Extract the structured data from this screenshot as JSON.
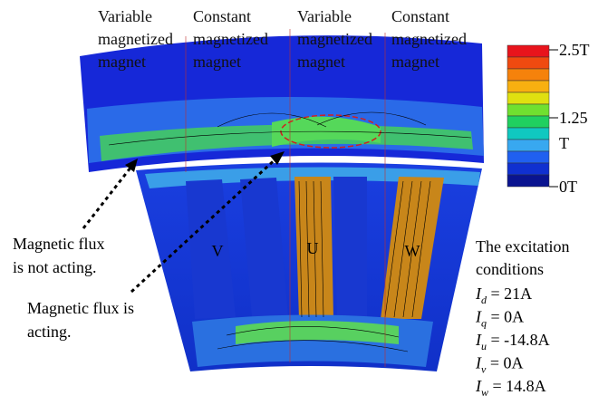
{
  "magnet_labels": [
    {
      "lines": [
        "Variable",
        "magnetized",
        "magnet"
      ]
    },
    {
      "lines": [
        "Constant",
        "magnetized",
        "magnet"
      ]
    },
    {
      "lines": [
        "Variable",
        "magnetized",
        "magnet"
      ]
    },
    {
      "lines": [
        "Constant",
        "magnetized",
        "magnet"
      ]
    }
  ],
  "colorbar": {
    "labels": [
      "2.5T",
      "1.25",
      "T",
      "0T"
    ]
  },
  "annotations": [
    {
      "lines": [
        "Magnetic flux",
        "is not acting."
      ]
    },
    {
      "lines": [
        "Magnetic flux is",
        "acting."
      ]
    }
  ],
  "phases": [
    "V",
    "U",
    "W"
  ],
  "excitation": {
    "title_lines": [
      "The excitation",
      "conditions"
    ],
    "conditions": [
      {
        "symbol": "I",
        "sub": "d",
        "text": " = 21A"
      },
      {
        "symbol": "I",
        "sub": "q",
        "text": " = 0A"
      },
      {
        "symbol": "I",
        "sub": "u",
        "text": " = -14.8A"
      },
      {
        "symbol": "I",
        "sub": "v",
        "text": " = 0A"
      },
      {
        "symbol": "I",
        "sub": "w",
        "text": " = 14.8A"
      }
    ]
  }
}
